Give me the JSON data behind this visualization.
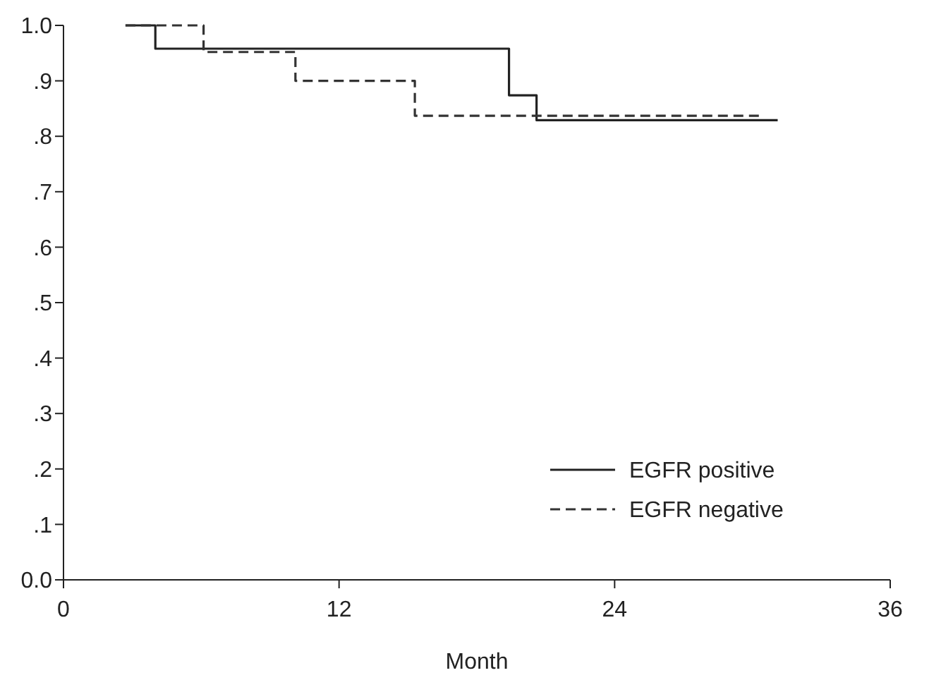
{
  "chart_data": {
    "type": "step",
    "xlabel": "Month",
    "xlim": [
      0,
      36
    ],
    "xticks": [
      0,
      12,
      24,
      36
    ],
    "ylim": [
      0,
      1
    ],
    "yticks": [
      {
        "value": 0,
        "label": "0.0"
      },
      {
        "value": 0.1,
        "label": ".1"
      },
      {
        "value": 0.2,
        "label": ".2"
      },
      {
        "value": 0.3,
        "label": ".3"
      },
      {
        "value": 0.4,
        "label": ".4"
      },
      {
        "value": 0.5,
        "label": ".5"
      },
      {
        "value": 0.6,
        "label": ".6"
      },
      {
        "value": 0.7,
        "label": ".7"
      },
      {
        "value": 0.8,
        "label": ".8"
      },
      {
        "value": 0.9,
        "label": ".9"
      },
      {
        "value": 1,
        "label": "1.0"
      }
    ],
    "grid": false,
    "legend": "bottom right",
    "series": [
      {
        "name": "EGFR positive",
        "color": "#222222",
        "line_style": "solid",
        "x": [
          2.7,
          4.0,
          19.4,
          20.6,
          31.1
        ],
        "values": [
          1.0,
          0.958,
          0.874,
          0.829,
          0.829
        ]
      },
      {
        "name": "EGFR negative",
        "color": "#333333",
        "line_style": "dashed",
        "x": [
          2.7,
          6.1,
          10.1,
          15.3,
          30.3
        ],
        "values": [
          1.0,
          0.952,
          0.9,
          0.837,
          0.837
        ]
      }
    ]
  }
}
